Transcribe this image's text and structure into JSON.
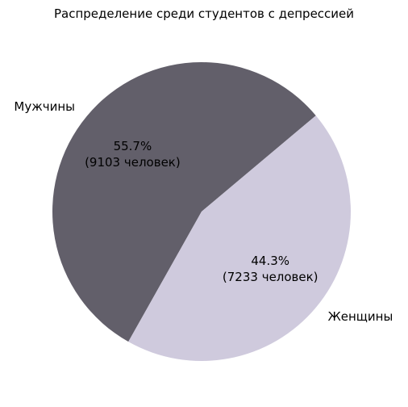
{
  "chart_data": {
    "type": "pie",
    "title": "Распределение среди студентов с депрессией",
    "categories": [
      "Мужчины",
      "Женщины"
    ],
    "values": [
      9103,
      7233
    ],
    "value_labels": [
      "55.7%\n(9103 человек)",
      "44.3%\n(7233 человек)"
    ],
    "colors": [
      "#625f6a",
      "#cfcadd"
    ]
  }
}
